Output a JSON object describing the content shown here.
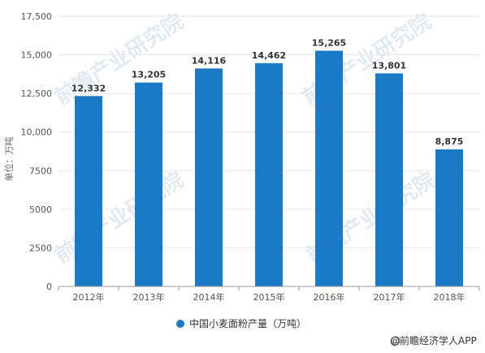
{
  "chart_data": {
    "type": "bar",
    "categories": [
      "2012年",
      "2013年",
      "2014年",
      "2015年",
      "2016年",
      "2017年",
      "2018年"
    ],
    "series": [
      {
        "name": "中国小麦面粉产量（万吨）",
        "values": [
          12332,
          13205,
          14116,
          14462,
          15265,
          13801,
          8875
        ]
      }
    ],
    "data_labels": [
      "12,332",
      "13,205",
      "14,116",
      "14,462",
      "15,265",
      "13,801",
      "8,875"
    ],
    "ylabel": "单位：万吨",
    "xlabel": "",
    "ylim": [
      0,
      17500
    ],
    "y_ticks": [
      0,
      2500,
      5000,
      7500,
      10000,
      12500,
      15000,
      17500
    ],
    "y_tick_labels": [
      "0",
      "2500",
      "5000",
      "7500",
      "10,000",
      "12,500",
      "15,000",
      "17,500"
    ],
    "grid": true,
    "legend_position": "bottom-center",
    "bar_color": "#1a7ac6"
  },
  "watermark": "前瞻产业研究院",
  "source": "@前瞻经济学人APP"
}
